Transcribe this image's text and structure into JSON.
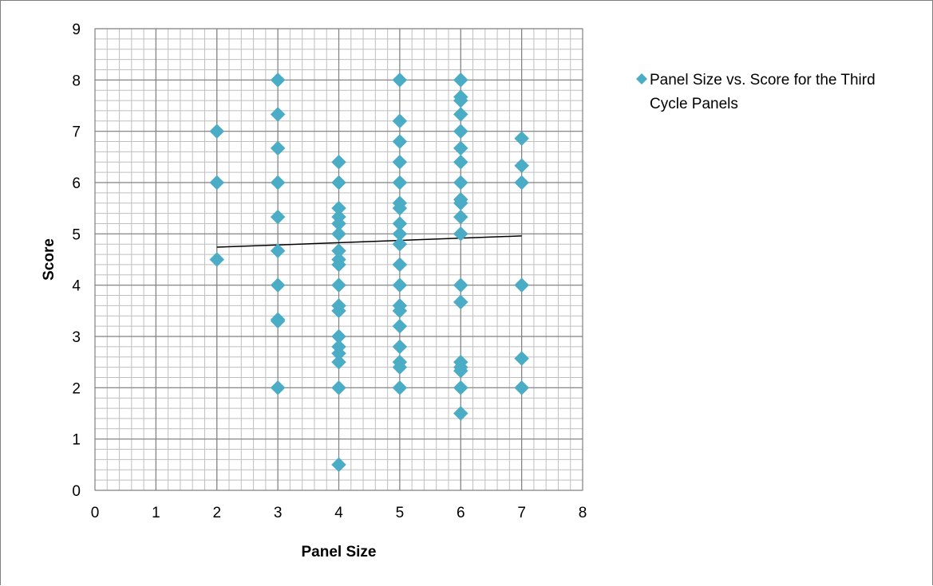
{
  "chart_data": {
    "type": "scatter",
    "title": "",
    "xlabel": "Panel Size",
    "ylabel": "Score",
    "xlim": [
      0,
      8
    ],
    "ylim": [
      0,
      9
    ],
    "x_ticks": [
      0,
      1,
      2,
      3,
      4,
      5,
      6,
      7,
      8
    ],
    "y_ticks": [
      0,
      1,
      2,
      3,
      4,
      5,
      6,
      7,
      8,
      9
    ],
    "grid": true,
    "minor_grid": true,
    "legend_position": "right-top",
    "marker": "diamond",
    "colors": {
      "marker": "#4bacc6",
      "trendline": "#000000",
      "grid": "#808080",
      "frame": "#7f7f7f"
    },
    "series": [
      {
        "name": "Panel Size vs. Score for the Third Cycle Panels",
        "points": [
          [
            2,
            7
          ],
          [
            2,
            6
          ],
          [
            2,
            4.5
          ],
          [
            3,
            8
          ],
          [
            3,
            7.33
          ],
          [
            3,
            6.67
          ],
          [
            3,
            6
          ],
          [
            3,
            5.33
          ],
          [
            3,
            4.67
          ],
          [
            3,
            4
          ],
          [
            3,
            3.33
          ],
          [
            3,
            3.3
          ],
          [
            3,
            2
          ],
          [
            4,
            6.4
          ],
          [
            4,
            6
          ],
          [
            4,
            5.5
          ],
          [
            4,
            5.33
          ],
          [
            4,
            5.2
          ],
          [
            4,
            5
          ],
          [
            4,
            4.67
          ],
          [
            4,
            4.5
          ],
          [
            4,
            4.4
          ],
          [
            4,
            4
          ],
          [
            4,
            3.6
          ],
          [
            4,
            3.5
          ],
          [
            4,
            3
          ],
          [
            4,
            2.8
          ],
          [
            4,
            2.67
          ],
          [
            4,
            2.5
          ],
          [
            4,
            2
          ],
          [
            4,
            0.5
          ],
          [
            5,
            8
          ],
          [
            5,
            7.2
          ],
          [
            5,
            6.8
          ],
          [
            5,
            6.4
          ],
          [
            5,
            6
          ],
          [
            5,
            5.6
          ],
          [
            5,
            5.5
          ],
          [
            5,
            5.2
          ],
          [
            5,
            5
          ],
          [
            5,
            4.8
          ],
          [
            5,
            4.4
          ],
          [
            5,
            4
          ],
          [
            5,
            3.6
          ],
          [
            5,
            3.5
          ],
          [
            5,
            3.2
          ],
          [
            5,
            2.8
          ],
          [
            5,
            2.5
          ],
          [
            5,
            2.4
          ],
          [
            5,
            2
          ],
          [
            6,
            8
          ],
          [
            6,
            7.67
          ],
          [
            6,
            7.6
          ],
          [
            6,
            7.33
          ],
          [
            6,
            7
          ],
          [
            6,
            6.67
          ],
          [
            6,
            6.4
          ],
          [
            6,
            6
          ],
          [
            6,
            5.67
          ],
          [
            6,
            5.6
          ],
          [
            6,
            5.33
          ],
          [
            6,
            5
          ],
          [
            6,
            4
          ],
          [
            6,
            3.67
          ],
          [
            6,
            2.5
          ],
          [
            6,
            2.4
          ],
          [
            6,
            2.33
          ],
          [
            6,
            2
          ],
          [
            6,
            1.5
          ],
          [
            7,
            6.86
          ],
          [
            7,
            6.33
          ],
          [
            7,
            6
          ],
          [
            7,
            4
          ],
          [
            7,
            2.57
          ],
          [
            7,
            2
          ]
        ]
      }
    ],
    "trendline": {
      "type": "linear",
      "x": [
        2,
        7
      ],
      "y": [
        4.74,
        4.96
      ]
    }
  }
}
